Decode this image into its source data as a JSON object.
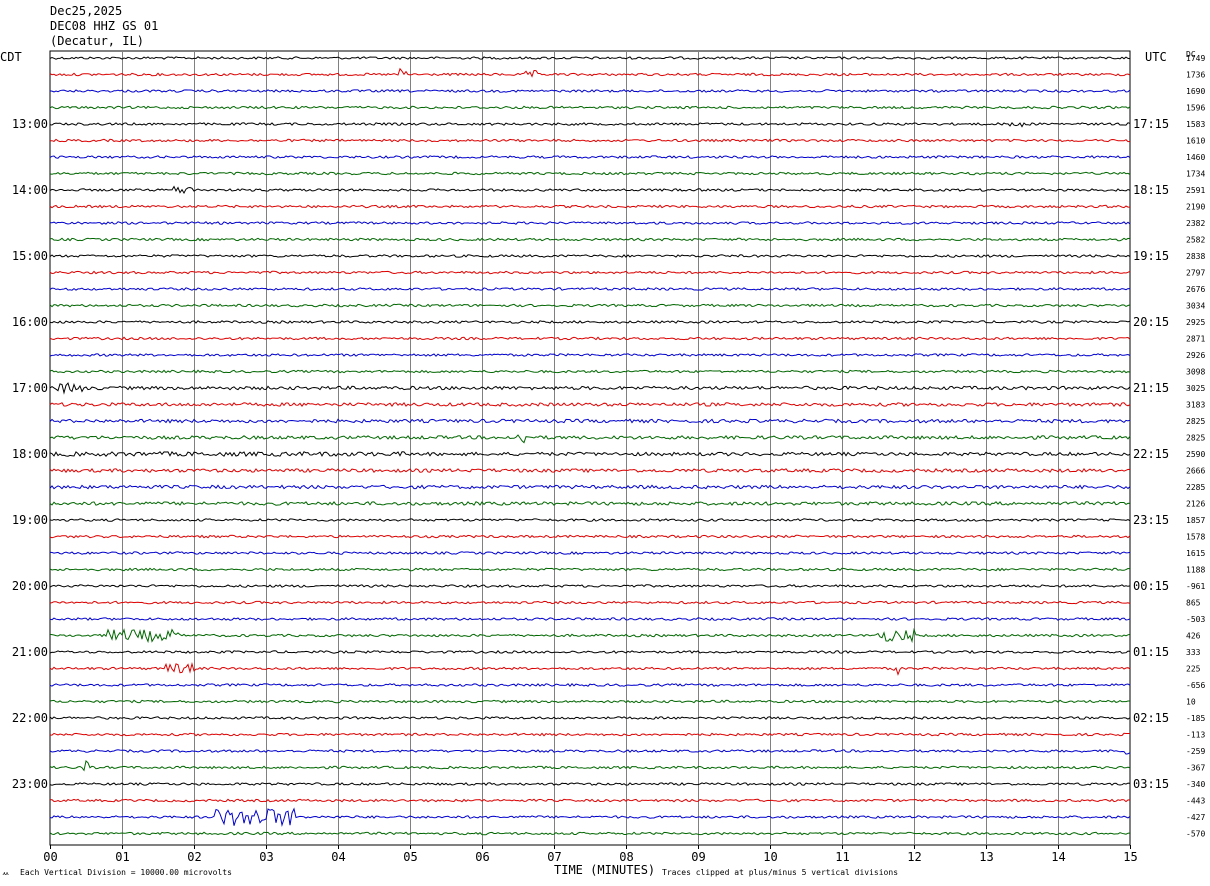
{
  "header": {
    "date": "Dec25,2025",
    "station": "DEC08 HHZ GS 01",
    "location": "(Decatur, IL)"
  },
  "labels": {
    "left_tz": "CDT",
    "right_tz": "UTC",
    "dc": "DC",
    "xlabel": "TIME (MINUTES)",
    "scale_note": "Each Vertical Division = 10000.00 microvolts",
    "clip_note": "Traces clipped at plus/minus 5 vertical divisions",
    "corner_mark": "ᄊ"
  },
  "colors": {
    "trace_cycle": [
      "#000000",
      "#dd0000",
      "#0000cc",
      "#006600"
    ],
    "grid": "#808080",
    "frame": "#000000"
  },
  "chart_data": {
    "type": "line",
    "x_ticks": [
      "00",
      "01",
      "02",
      "03",
      "04",
      "05",
      "06",
      "07",
      "08",
      "09",
      "10",
      "11",
      "12",
      "13",
      "14",
      "15"
    ],
    "xlim": [
      0,
      15
    ],
    "trace_count": 48,
    "traces_per_hour": 4,
    "left_hour_labels": [
      "13:00",
      "14:00",
      "15:00",
      "16:00",
      "17:00",
      "18:00",
      "19:00",
      "20:00",
      "21:00",
      "22:00",
      "23:00"
    ],
    "right_hour_labels": [
      "17:15",
      "18:15",
      "19:15",
      "20:15",
      "21:15",
      "22:15",
      "23:15",
      "00:15",
      "01:15",
      "02:15",
      "03:15"
    ],
    "dc_offsets": [
      "1749",
      "1736",
      "1690",
      "1596",
      "1583",
      "1610",
      "1460",
      "1734",
      "2591",
      "2190",
      "2382",
      "2582",
      "2838",
      "2797",
      "2676",
      "3034",
      "2925",
      "2871",
      "2926",
      "3098",
      "3025",
      "3183",
      "2825",
      "2825",
      "2590",
      "2666",
      "2285",
      "2126",
      "1857",
      "1578",
      "1615",
      "1188",
      "-961",
      "865",
      "-503",
      "426",
      "333",
      "225",
      "-656",
      "10",
      "-185",
      "-113",
      "-259",
      "-367",
      "-340",
      "-443",
      "-427",
      "-570"
    ]
  }
}
